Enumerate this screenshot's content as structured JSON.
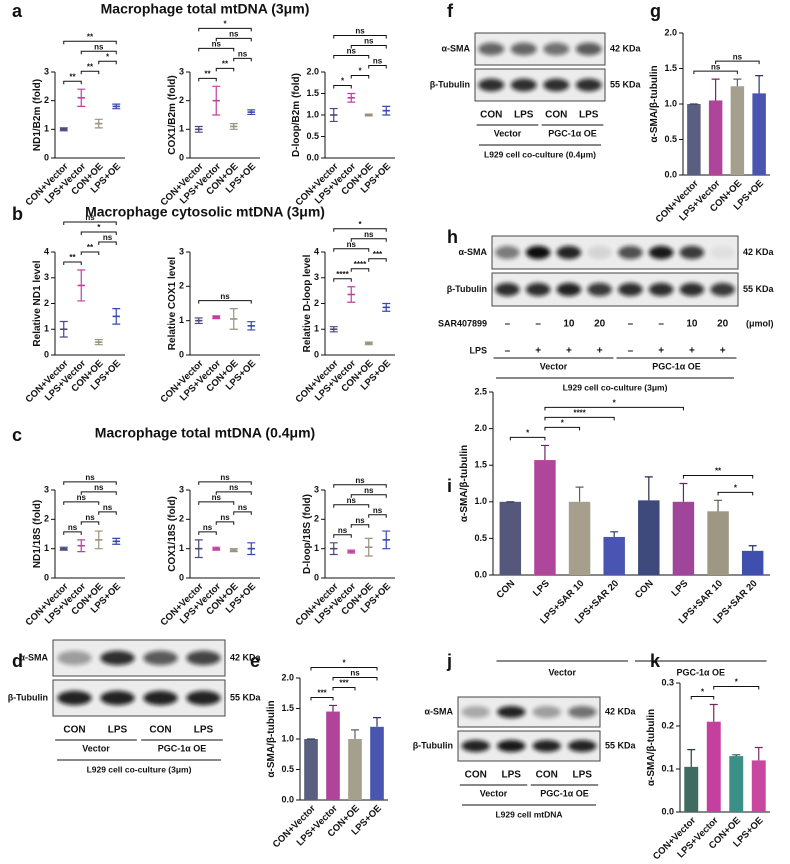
{
  "row_titles": [
    "Macrophage total mtDNA (3μm)",
    "Macrophage cytosolic mtDNA (3μm)",
    "Macrophage total mtDNA (0.4μm)"
  ],
  "panel_labels": [
    "a",
    "b",
    "c",
    "d",
    "e",
    "f",
    "g",
    "h",
    "i",
    "j",
    "k"
  ],
  "chart_data": [
    {
      "type": "dot",
      "ylabel": "ND1/B2m (fold)",
      "categories": [
        "CON+Vector",
        "LPS+Vector",
        "CON+OE",
        "LPS+OE"
      ],
      "values": [
        1.0,
        2.1,
        1.2,
        1.8
      ],
      "errors": [
        0.05,
        0.3,
        0.15,
        0.08
      ],
      "colors": [
        "#4a4a7a",
        "#c040a0",
        "#9a927e",
        "#3848b0"
      ],
      "ylim": [
        0,
        3
      ],
      "yticks": [
        0,
        1,
        2,
        3
      ],
      "significance": [
        {
          "pair": [
            0,
            1
          ],
          "label": "**"
        },
        {
          "pair": [
            1,
            2
          ],
          "label": "**"
        },
        {
          "pair": [
            2,
            3
          ],
          "label": "*"
        },
        {
          "pair": [
            1,
            3
          ],
          "label": "ns"
        },
        {
          "pair": [
            0,
            3
          ],
          "label": "**"
        }
      ]
    },
    {
      "type": "dot",
      "ylabel": "COX1/B2m (fold)",
      "categories": [
        "CON+Vector",
        "LPS+Vector",
        "CON+OE",
        "LPS+OE"
      ],
      "values": [
        1.0,
        2.0,
        1.1,
        1.6
      ],
      "errors": [
        0.1,
        0.5,
        0.1,
        0.08
      ],
      "colors": [
        "#4a4a7a",
        "#c040a0",
        "#9a927e",
        "#3848b0"
      ],
      "ylim": [
        0,
        3
      ],
      "yticks": [
        0,
        1,
        2,
        3
      ],
      "significance": [
        {
          "pair": [
            0,
            1
          ],
          "label": "**"
        },
        {
          "pair": [
            1,
            2
          ],
          "label": "**"
        },
        {
          "pair": [
            2,
            3
          ],
          "label": "ns"
        },
        {
          "pair": [
            0,
            2
          ],
          "label": "ns"
        },
        {
          "pair": [
            1,
            3
          ],
          "label": "ns"
        },
        {
          "pair": [
            0,
            3
          ],
          "label": "*"
        }
      ]
    },
    {
      "type": "dot",
      "ylabel": "D-loop/B2m (fold)",
      "categories": [
        "CON+Vector",
        "LPS+Vector",
        "CON+OE",
        "LPS+OE"
      ],
      "values": [
        1.0,
        1.4,
        1.0,
        1.1
      ],
      "errors": [
        0.15,
        0.1,
        0.02,
        0.1
      ],
      "colors": [
        "#4a4a7a",
        "#c040a0",
        "#9a927e",
        "#3848b0"
      ],
      "ylim": [
        0,
        2
      ],
      "yticks": [
        {
          "value": 0,
          "label": "0.0"
        },
        {
          "value": 0.5,
          "label": "0.5"
        },
        {
          "value": 1,
          "label": "1.0"
        },
        {
          "value": 1.5,
          "label": "1.5"
        },
        {
          "value": 2,
          "label": "2.0"
        }
      ],
      "significance": [
        {
          "pair": [
            0,
            1
          ],
          "label": "*"
        },
        {
          "pair": [
            1,
            2
          ],
          "label": "*"
        },
        {
          "pair": [
            2,
            3
          ],
          "label": "ns"
        },
        {
          "pair": [
            0,
            2
          ],
          "label": "ns"
        },
        {
          "pair": [
            1,
            3
          ],
          "label": "ns"
        },
        {
          "pair": [
            0,
            3
          ],
          "label": "ns"
        }
      ]
    },
    {
      "type": "dot",
      "ylabel": "Relative ND1 level",
      "categories": [
        "CON+Vector",
        "LPS+Vector",
        "CON+OE",
        "LPS+OE"
      ],
      "values": [
        1.0,
        2.7,
        0.5,
        1.5
      ],
      "errors": [
        0.3,
        0.6,
        0.1,
        0.3
      ],
      "colors": [
        "#4a4a7a",
        "#c040a0",
        "#9a927e",
        "#3848b0"
      ],
      "ylim": [
        0,
        4
      ],
      "yticks": [
        0,
        1,
        2,
        3,
        4
      ],
      "significance": [
        {
          "pair": [
            0,
            1
          ],
          "label": "**"
        },
        {
          "pair": [
            1,
            2
          ],
          "label": "**"
        },
        {
          "pair": [
            2,
            3
          ],
          "label": "ns"
        },
        {
          "pair": [
            1,
            3
          ],
          "label": "*"
        },
        {
          "pair": [
            0,
            3
          ],
          "label": "ns"
        }
      ]
    },
    {
      "type": "dot",
      "ylabel": "Relative COX1 level",
      "categories": [
        "CON+Vector",
        "LPS+Vector",
        "CON+OE",
        "LPS+OE"
      ],
      "values": [
        1.0,
        1.1,
        1.05,
        0.85
      ],
      "errors": [
        0.08,
        0.04,
        0.3,
        0.12
      ],
      "colors": [
        "#4a4a7a",
        "#c040a0",
        "#9a927e",
        "#3848b0"
      ],
      "ylim": [
        0,
        3
      ],
      "yticks": [
        0,
        1,
        2,
        3
      ],
      "significance": [
        {
          "pair": [
            0,
            3
          ],
          "label": "ns"
        }
      ]
    },
    {
      "type": "dot",
      "ylabel": "Relative D-loop level",
      "categories": [
        "CON+Vector",
        "LPS+Vector",
        "CON+OE",
        "LPS+OE"
      ],
      "values": [
        1.0,
        2.35,
        0.45,
        1.85
      ],
      "errors": [
        0.1,
        0.3,
        0.05,
        0.15
      ],
      "colors": [
        "#4a4a7a",
        "#c040a0",
        "#9a927e",
        "#3848b0"
      ],
      "ylim": [
        0,
        4
      ],
      "yticks": [
        0,
        1,
        2,
        3,
        4
      ],
      "significance": [
        {
          "pair": [
            0,
            1
          ],
          "label": "****"
        },
        {
          "pair": [
            1,
            2
          ],
          "label": "****"
        },
        {
          "pair": [
            2,
            3
          ],
          "label": "***"
        },
        {
          "pair": [
            0,
            2
          ],
          "label": "ns"
        },
        {
          "pair": [
            1,
            3
          ],
          "label": "ns"
        },
        {
          "pair": [
            0,
            3
          ],
          "label": "*"
        }
      ]
    },
    {
      "type": "dot",
      "ylabel": "ND1/18S (fold)",
      "categories": [
        "CON+Vector",
        "LPS+Vector",
        "CON+OE",
        "LPS+OE"
      ],
      "values": [
        1.0,
        1.1,
        1.3,
        1.25
      ],
      "errors": [
        0.05,
        0.2,
        0.3,
        0.1
      ],
      "colors": [
        "#4a4a7a",
        "#c040a0",
        "#9a927e",
        "#3848b0"
      ],
      "ylim": [
        0,
        3
      ],
      "yticks": [
        0,
        1,
        2,
        3
      ],
      "significance": [
        {
          "pair": [
            0,
            1
          ],
          "label": "ns"
        },
        {
          "pair": [
            1,
            2
          ],
          "label": "ns"
        },
        {
          "pair": [
            2,
            3
          ],
          "label": "ns"
        },
        {
          "pair": [
            0,
            2
          ],
          "label": "ns"
        },
        {
          "pair": [
            1,
            3
          ],
          "label": "ns"
        },
        {
          "pair": [
            0,
            3
          ],
          "label": "ns"
        }
      ]
    },
    {
      "type": "dot",
      "ylabel": "COX1/18S (fold)",
      "categories": [
        "CON+Vector",
        "LPS+Vector",
        "CON+OE",
        "LPS+OE"
      ],
      "values": [
        1.0,
        1.0,
        0.95,
        1.0
      ],
      "errors": [
        0.3,
        0.05,
        0.05,
        0.2
      ],
      "colors": [
        "#4a4a7a",
        "#c040a0",
        "#9a927e",
        "#3848b0"
      ],
      "ylim": [
        0,
        3
      ],
      "yticks": [
        0,
        1,
        2,
        3
      ],
      "significance": [
        {
          "pair": [
            0,
            1
          ],
          "label": "ns"
        },
        {
          "pair": [
            1,
            2
          ],
          "label": "ns"
        },
        {
          "pair": [
            2,
            3
          ],
          "label": "ns"
        },
        {
          "pair": [
            0,
            2
          ],
          "label": "ns"
        },
        {
          "pair": [
            1,
            3
          ],
          "label": "ns"
        },
        {
          "pair": [
            0,
            3
          ],
          "label": "ns"
        }
      ]
    },
    {
      "type": "dot",
      "ylabel": "D-loop/18S (fold)",
      "categories": [
        "CON+Vector",
        "LPS+Vector",
        "CON+OE",
        "LPS+OE"
      ],
      "values": [
        1.0,
        0.9,
        1.05,
        1.3
      ],
      "errors": [
        0.2,
        0.05,
        0.3,
        0.3
      ],
      "colors": [
        "#4a4a7a",
        "#c040a0",
        "#9a927e",
        "#3848b0"
      ],
      "ylim": [
        0,
        3
      ],
      "yticks": [
        0,
        1,
        2,
        3
      ],
      "significance": [
        {
          "pair": [
            0,
            1
          ],
          "label": "ns"
        },
        {
          "pair": [
            1,
            2
          ],
          "label": "ns"
        },
        {
          "pair": [
            2,
            3
          ],
          "label": "ns"
        },
        {
          "pair": [
            0,
            2
          ],
          "label": "ns"
        },
        {
          "pair": [
            1,
            3
          ],
          "label": "ns"
        },
        {
          "pair": [
            0,
            3
          ],
          "label": "ns"
        }
      ]
    },
    {
      "type": "bar",
      "ylabel": "α-SMA/β-tubulin",
      "categories": [
        "CON+Vector",
        "LPS+Vector",
        "CON+OE",
        "LPS+OE"
      ],
      "values": [
        1.0,
        1.45,
        1.0,
        1.2
      ],
      "errors": [
        0,
        0.1,
        0.15,
        0.15
      ],
      "colors": [
        "#5a5e80",
        "#b0449a",
        "#a59f8d",
        "#4a55b0"
      ],
      "ylim": [
        0,
        2
      ],
      "yticks": [
        {
          "value": 0,
          "label": "0.0"
        },
        {
          "value": 0.5,
          "label": "0.5"
        },
        {
          "value": 1,
          "label": "1.0"
        },
        {
          "value": 1.5,
          "label": "1.5"
        },
        {
          "value": 2,
          "label": "2.0"
        }
      ],
      "significance": [
        {
          "pair": [
            0,
            1
          ],
          "label": "***"
        },
        {
          "pair": [
            1,
            2
          ],
          "label": "***"
        },
        {
          "pair": [
            1,
            3
          ],
          "label": "ns"
        },
        {
          "pair": [
            0,
            3
          ],
          "label": "*"
        }
      ]
    },
    {
      "type": "bar",
      "ylabel": "α-SMA/β-tubulin",
      "categories": [
        "CON+Vector",
        "LPS+Vector",
        "CON+OE",
        "LPS+OE"
      ],
      "values": [
        1.0,
        1.05,
        1.25,
        1.15
      ],
      "errors": [
        0,
        0.3,
        0.1,
        0.25
      ],
      "colors": [
        "#5a5e80",
        "#b0449a",
        "#a59f8d",
        "#4a55b0"
      ],
      "ylim": [
        0,
        2
      ],
      "yticks": [
        {
          "value": 0,
          "label": "0.0"
        },
        {
          "value": 0.5,
          "label": "0.5"
        },
        {
          "value": 1,
          "label": "1.0"
        },
        {
          "value": 1.5,
          "label": "1.5"
        },
        {
          "value": 2,
          "label": "2.0"
        }
      ],
      "significance": [
        {
          "pair": [
            0,
            2
          ],
          "label": "ns"
        },
        {
          "pair": [
            1,
            3
          ],
          "label": "ns"
        }
      ]
    },
    {
      "type": "bar",
      "ylabel": "α-SMA/β-tubulin",
      "categories": [
        "CON",
        "LPS",
        "LPS+SAR 10",
        "LPS+SAR 20",
        "CON",
        "LPS",
        "LPS+SAR 10",
        "LPS+SAR 20"
      ],
      "values": [
        1.0,
        1.57,
        1.0,
        0.52,
        1.02,
        1.0,
        0.87,
        0.33
      ],
      "errors": [
        0,
        0.2,
        0.2,
        0.07,
        0.32,
        0.25,
        0.15,
        0.07
      ],
      "colors": [
        "#55587a",
        "#b0459c",
        "#a69f8c",
        "#4a55b3",
        "#3f4a7c",
        "#a0469a",
        "#9d9784",
        "#3f4fae"
      ],
      "ylim": [
        0,
        2.5
      ],
      "yticks": [
        {
          "value": 0,
          "label": "0.0"
        },
        {
          "value": 0.5,
          "label": "0.5"
        },
        {
          "value": 1,
          "label": "1.0"
        },
        {
          "value": 1.5,
          "label": "1.5"
        },
        {
          "value": 2,
          "label": "2.0"
        },
        {
          "value": 2.5,
          "label": "2.5"
        }
      ],
      "groups": [
        {
          "label": "Vector",
          "span": [
            0,
            3
          ]
        },
        {
          "label": "PGC-1α OE",
          "span": [
            4,
            7
          ]
        }
      ],
      "significance": [
        {
          "pair": [
            0,
            1
          ],
          "label": "*"
        },
        {
          "pair": [
            1,
            2
          ],
          "label": "*"
        },
        {
          "pair": [
            6,
            7
          ],
          "label": "*"
        },
        {
          "pair": [
            1,
            3
          ],
          "label": "****"
        },
        {
          "pair": [
            5,
            7
          ],
          "label": "**"
        },
        {
          "pair": [
            1,
            5
          ],
          "label": "*"
        }
      ]
    },
    {
      "type": "bar",
      "ylabel": "α-SMA/β-tubulin",
      "categories": [
        "CON+Vector",
        "LPS+Vector",
        "CON+OE",
        "LPS+OE"
      ],
      "values": [
        0.105,
        0.21,
        0.13,
        0.12
      ],
      "errors": [
        0.04,
        0.04,
        0.003,
        0.03
      ],
      "colors": [
        "#3f6b60",
        "#c43f9e",
        "#3a8f86",
        "#c8489f"
      ],
      "ylim": [
        0,
        0.3
      ],
      "yticks": [
        {
          "value": 0,
          "label": "0.0"
        },
        0.1,
        0.2,
        0.3
      ],
      "significance": [
        {
          "pair": [
            0,
            1
          ],
          "label": "*"
        },
        {
          "pair": [
            1,
            3
          ],
          "label": "*"
        }
      ]
    }
  ],
  "blots": [
    {
      "rows": [
        "α-SMA",
        "β-Tubulin"
      ],
      "kda": [
        "42 KDa",
        "55 KDa"
      ],
      "lanes": [
        "CON",
        "LPS",
        "CON",
        "LPS"
      ],
      "groups": [
        {
          "label": "Vector",
          "span": [
            0,
            1
          ]
        },
        {
          "label": "PGC-1α OE",
          "span": [
            2,
            3
          ]
        }
      ],
      "caption": "L929 cell co-culture (3μm)"
    },
    {
      "rows": [
        "α-SMA",
        "β-Tubulin"
      ],
      "kda": [
        "42 KDa",
        "55 KDa"
      ],
      "lanes": [
        "CON",
        "LPS",
        "CON",
        "LPS"
      ],
      "groups": [
        {
          "label": "Vector",
          "span": [
            0,
            1
          ]
        },
        {
          "label": "PGC-1α OE",
          "span": [
            2,
            3
          ]
        }
      ],
      "caption": "L929 cell co-culture (0.4μm)"
    },
    {
      "rows": [
        "α-SMA",
        "β-Tubulin"
      ],
      "kda": [
        "42 KDa",
        "55 KDa"
      ],
      "treatments": [
        {
          "name": "SAR407899",
          "levels": [
            "–",
            "–",
            "10",
            "20",
            "–",
            "–",
            "10",
            "20"
          ],
          "unit": "(μmol)"
        },
        {
          "name": "LPS",
          "levels": [
            "–",
            "+",
            "+",
            "+",
            "–",
            "+",
            "+",
            "+"
          ]
        }
      ],
      "groups": [
        {
          "label": "Vector",
          "span": [
            0,
            3
          ]
        },
        {
          "label": "PGC-1α OE",
          "span": [
            4,
            7
          ]
        }
      ],
      "caption": "L929 cell co-culture (3μm)"
    },
    {
      "rows": [
        "α-SMA",
        "β-Tubulin"
      ],
      "kda": [
        "42 KDa",
        "55 KDa"
      ],
      "lanes": [
        "CON",
        "LPS",
        "CON",
        "LPS"
      ],
      "groups": [
        {
          "label": "Vector",
          "span": [
            0,
            1
          ]
        },
        {
          "label": "PGC-1α OE",
          "span": [
            2,
            3
          ]
        }
      ],
      "caption": "L929 cell mtDNA"
    }
  ]
}
